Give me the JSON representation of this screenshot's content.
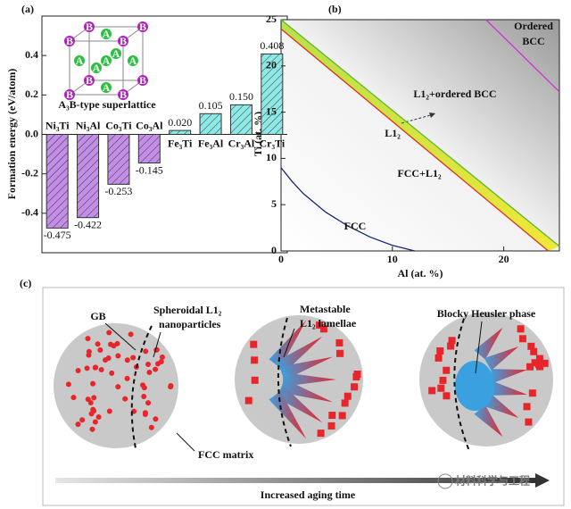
{
  "panel_labels": [
    "(a)",
    "(b)",
    "(c)"
  ],
  "chart_data": [
    {
      "type": "bar",
      "y_label": "Formation energy (eV/atom)",
      "inset_label": "A₃B-type superlattice",
      "inset_atoms": [
        "A",
        "B"
      ],
      "categories": [
        "Ni₃Ti",
        "Ni₃Al",
        "Co₃Ti",
        "Co₃Al",
        "Fe₃Ti",
        "Fe₃Al",
        "Cr₃Al",
        "Cr₃Ti"
      ],
      "values": [
        -0.475,
        -0.422,
        -0.253,
        -0.145,
        0.02,
        0.105,
        0.15,
        0.408
      ],
      "value_labels": [
        "-0.475",
        "-0.422",
        "-0.253",
        "-0.145",
        "0.020",
        "0.105",
        "0.150",
        "0.408"
      ],
      "colors": [
        "#c28ee8",
        "#c28ee8",
        "#c28ee8",
        "#c28ee8",
        "#8ee8e6",
        "#8ee8e6",
        "#8ee8e6",
        "#8ee8e6"
      ],
      "ylim": [
        -0.6,
        0.6
      ],
      "yticks": [
        -0.4,
        -0.2,
        {
          "value": 0,
          "label": "0.0"
        },
        0.2,
        0.4
      ]
    },
    {
      "type": "line",
      "x_label": "Al (at. %)",
      "y_label": "Ti (at. %)",
      "xlim": [
        0,
        25
      ],
      "ylim": [
        0,
        25
      ],
      "xticks": [
        0,
        10,
        20
      ],
      "yticks": [
        0,
        5,
        10,
        15,
        20,
        25
      ],
      "series": [
        {
          "color": "#1b237a",
          "x": [
            0,
            1,
            2,
            4,
            6,
            8,
            10,
            12
          ],
          "values": [
            9,
            7.5,
            6.2,
            4.2,
            2.7,
            1.5,
            0.6,
            0
          ]
        },
        {
          "color": "#d9331f",
          "x": [
            0,
            24
          ],
          "values": [
            24,
            0
          ]
        },
        {
          "color": "#5fb82a",
          "x": [
            0,
            25
          ],
          "values": [
            25,
            0.5
          ]
        },
        {
          "color": "#cc33cc",
          "x": [
            18.4,
            25
          ],
          "values": [
            25,
            17.2
          ]
        }
      ],
      "annotations": [
        [
          "Ordered",
          "BCC"
        ],
        [
          "L1₂+ordered BCC"
        ],
        [
          "L1₂"
        ],
        [
          "FCC+L1₂"
        ],
        [
          "FCC"
        ]
      ]
    }
  ],
  "diagram": {
    "labels": [
      "GB",
      "Spheroidal L1₂",
      "nanoparticles",
      "FCC matrix",
      "Metastable",
      "L1₂ lamellae",
      "Blocky Heusler phase"
    ],
    "arrow_label": "Increased aging time",
    "watermark": "材料科学与工程"
  }
}
